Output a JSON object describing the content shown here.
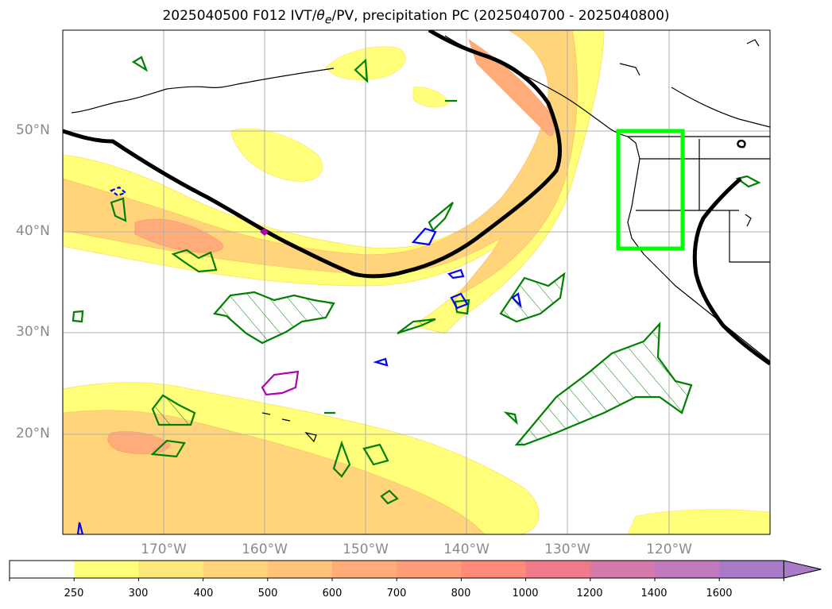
{
  "title": {
    "prefix": "2025040500 F012 IVT/",
    "theta": "θ",
    "sub": "e",
    "suffix": "/PV, precipitation PC (2025040700 - 2025040800)"
  },
  "axes": {
    "lat_labels": [
      "50°N",
      "40°N",
      "30°N",
      "20°N"
    ],
    "lon_labels": [
      "170°W",
      "160°W",
      "150°W",
      "140°W",
      "130°W",
      "120°W"
    ]
  },
  "colorbar": {
    "ticks": [
      "250",
      "300",
      "400",
      "500",
      "600",
      "700",
      "800",
      "1000",
      "1200",
      "1400",
      "1600"
    ],
    "colors": [
      "#ffffff",
      "#ffff7a",
      "#ffe87a",
      "#ffd47a",
      "#ffc47a",
      "#ffac7a",
      "#ff9c7a",
      "#ff8a7a",
      "#ee7a8a",
      "#d47aa8",
      "#c07ac0",
      "#a87ac8"
    ],
    "extend": "max"
  },
  "legend_colors": {
    "pv_contour": "#000000",
    "theta_e_contour": "#008000",
    "precip_blue": "#0000ff",
    "precip_magenta": "#b000b0",
    "highlight_box": "#00ff00"
  }
}
